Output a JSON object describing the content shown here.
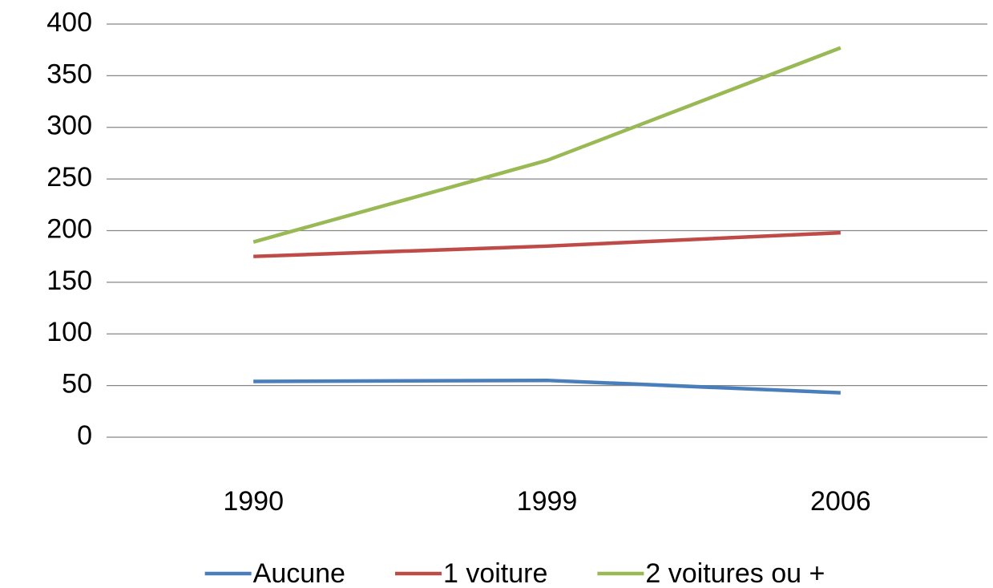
{
  "chart_data": {
    "type": "line",
    "categories": [
      "1990",
      "1999",
      "2006"
    ],
    "series": [
      {
        "name": "Aucune",
        "color": "#4a7ebb",
        "values": [
          54,
          55,
          43
        ]
      },
      {
        "name": "1 voiture",
        "color": "#be4b48",
        "values": [
          175,
          185,
          198
        ]
      },
      {
        "name": "2 voitures ou +",
        "color": "#98b954",
        "values": [
          189,
          268,
          377
        ]
      }
    ],
    "ylim": [
      0,
      400
    ],
    "yticks": [
      0,
      50,
      100,
      150,
      200,
      250,
      300,
      350,
      400
    ],
    "grid": true,
    "legend": "bottom"
  }
}
